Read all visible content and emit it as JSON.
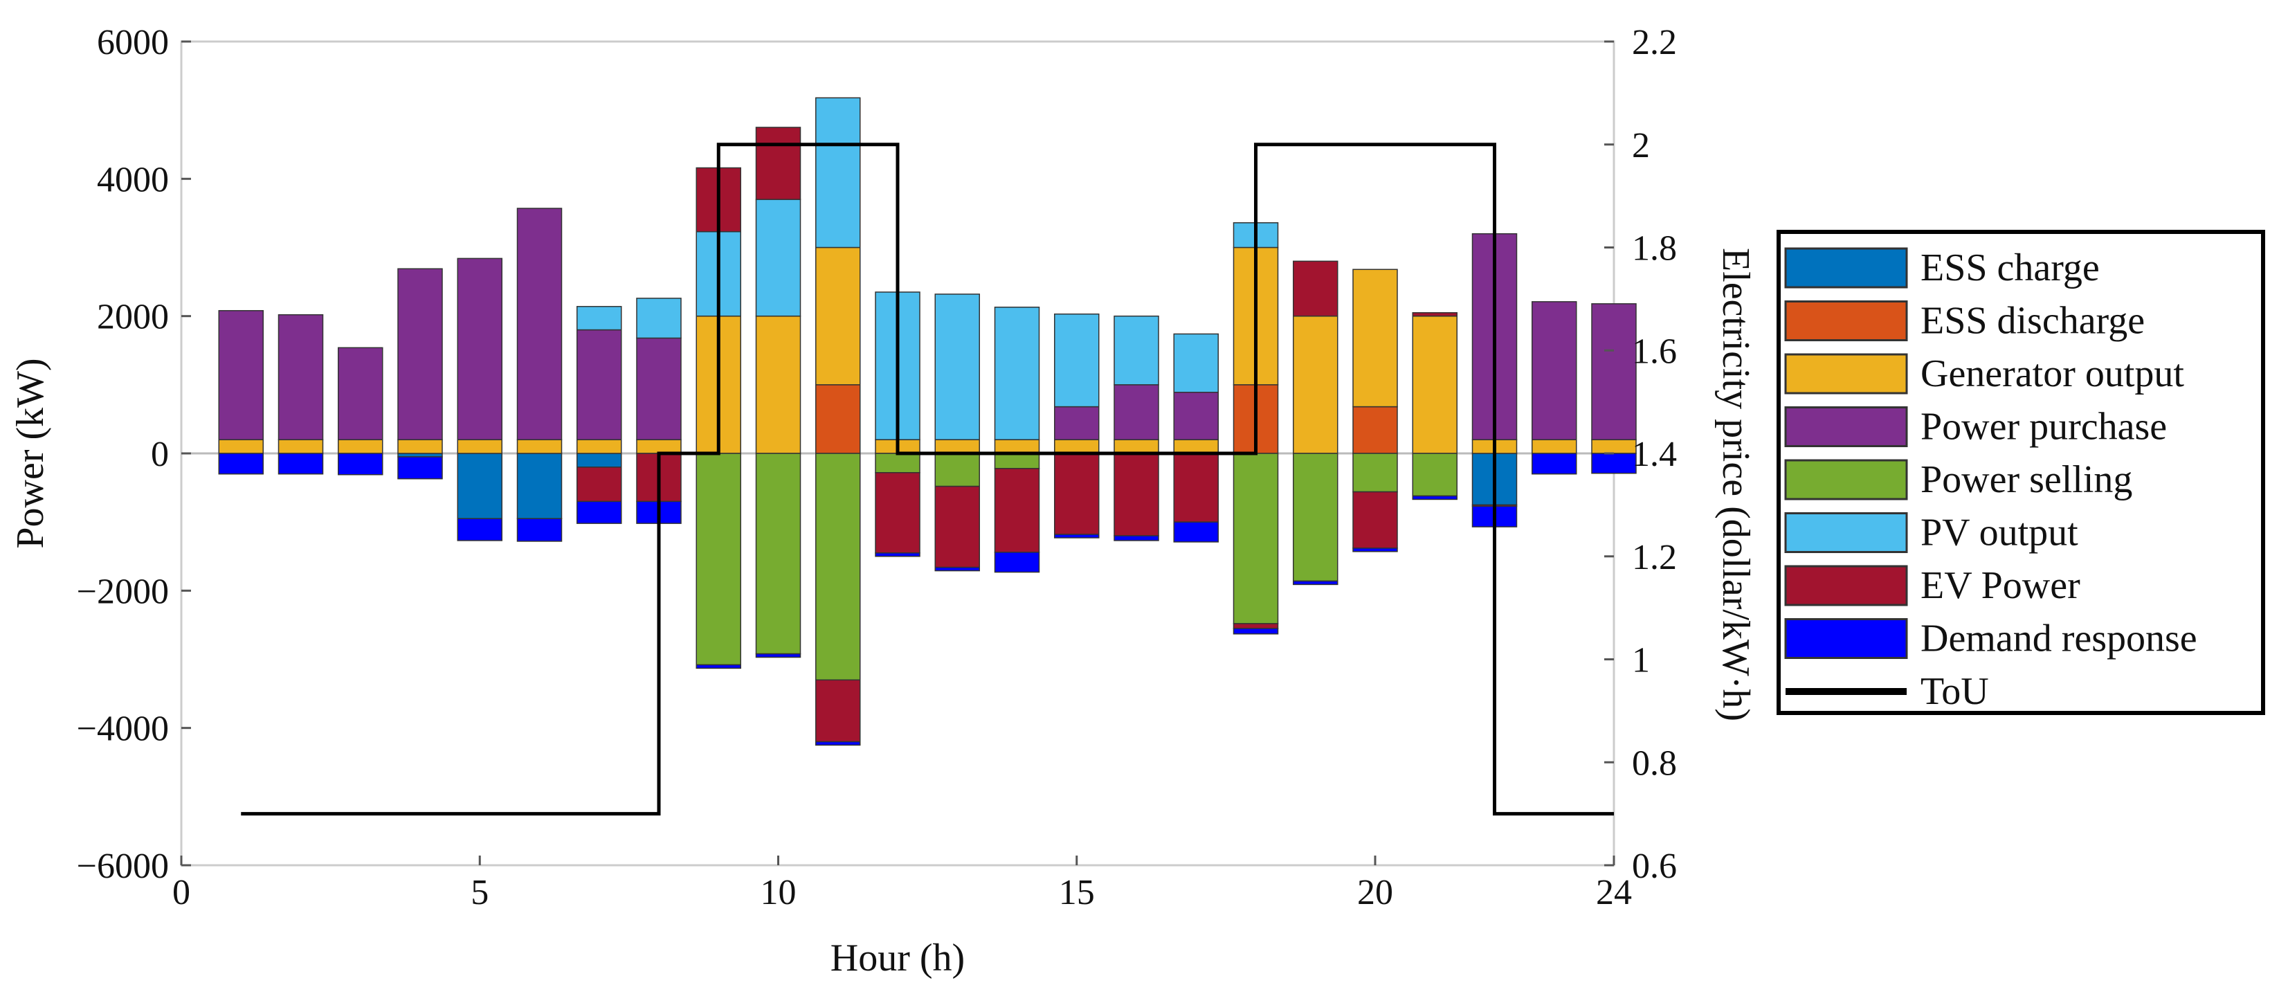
{
  "chart_data": {
    "type": "bar",
    "stacked": true,
    "xlabel": "Hour (h)",
    "ylabel": "Power (kW)",
    "y2label": "Electricity price (dollar/kW·h)",
    "xlim": [
      0,
      24
    ],
    "ylim": [
      -6000,
      6000
    ],
    "y2lim": [
      0.6,
      2.2
    ],
    "xticks": [
      "0",
      "5",
      "10",
      "15",
      "20",
      "24"
    ],
    "xtick_values": [
      0,
      5,
      10,
      15,
      20,
      24
    ],
    "yticks": [
      "6000",
      "4000",
      "2000",
      "0",
      "−2000",
      "−4000",
      "−6000"
    ],
    "ytick_values": [
      6000,
      4000,
      2000,
      0,
      -2000,
      -4000,
      -6000
    ],
    "y2ticks": [
      "2.2",
      "2",
      "1.8",
      "1.6",
      "1.4",
      "1.2",
      "1",
      "0.8",
      "0.6"
    ],
    "y2tick_values": [
      2.2,
      2.0,
      1.8,
      1.6,
      1.4,
      1.2,
      1.0,
      0.8,
      0.6
    ],
    "legend_position": "right",
    "hours": [
      1,
      2,
      3,
      4,
      5,
      6,
      7,
      8,
      9,
      10,
      11,
      12,
      13,
      14,
      15,
      16,
      17,
      18,
      19,
      20,
      21,
      22,
      23,
      24
    ],
    "series": [
      {
        "name": "ESS charge",
        "color": "#0072BD",
        "values": [
          0,
          0,
          0,
          -50,
          -950,
          -950,
          -200,
          0,
          0,
          0,
          0,
          0,
          0,
          0,
          0,
          0,
          0,
          0,
          0,
          0,
          0,
          -750,
          0,
          0
        ]
      },
      {
        "name": "ESS discharge",
        "color": "#D95319",
        "values": [
          0,
          0,
          0,
          0,
          0,
          0,
          0,
          0,
          0,
          0,
          1000,
          0,
          0,
          0,
          0,
          0,
          0,
          1000,
          0,
          680,
          0,
          0,
          0,
          0
        ]
      },
      {
        "name": "Generator output",
        "color": "#EDB120",
        "values": [
          200,
          200,
          200,
          200,
          200,
          200,
          200,
          200,
          2000,
          2000,
          2000,
          200,
          200,
          200,
          200,
          200,
          200,
          2000,
          2000,
          2000,
          2000,
          200,
          200,
          200
        ]
      },
      {
        "name": "Power purchase",
        "color": "#7E2F8E",
        "values": [
          1880,
          1820,
          1340,
          2490,
          2640,
          3370,
          1600,
          1480,
          0,
          0,
          0,
          0,
          0,
          0,
          480,
          800,
          690,
          0,
          0,
          0,
          0,
          3000,
          2010,
          1980
        ]
      },
      {
        "name": "Power selling",
        "color": "#77AC30",
        "values": [
          0,
          0,
          0,
          0,
          0,
          0,
          0,
          0,
          -3080,
          -2920,
          -3300,
          -280,
          -480,
          -220,
          0,
          0,
          0,
          -2480,
          -1860,
          -560,
          -620,
          0,
          0,
          0
        ]
      },
      {
        "name": "PV output",
        "color": "#4DBEEE",
        "values": [
          0,
          0,
          0,
          0,
          0,
          0,
          340,
          580,
          1230,
          1700,
          2180,
          2150,
          2120,
          1930,
          1350,
          1000,
          850,
          360,
          0,
          0,
          0,
          0,
          0,
          0
        ]
      },
      {
        "name": "EV Power",
        "color": "#A2142F",
        "values": [
          0,
          0,
          0,
          0,
          0,
          0,
          -500,
          -700,
          930,
          1050,
          -900,
          -1170,
          -1180,
          -1220,
          -1180,
          -1200,
          -1000,
          -70,
          800,
          -820,
          50,
          -20,
          0,
          0
        ]
      },
      {
        "name": "Demand response",
        "color": "#0000FF",
        "values": [
          -300,
          -300,
          -310,
          -320,
          -320,
          -330,
          -320,
          -320,
          -50,
          -50,
          -50,
          -50,
          -50,
          -290,
          -50,
          -70,
          -290,
          -80,
          -50,
          -50,
          -50,
          -300,
          -300,
          -290
        ]
      }
    ],
    "tou": {
      "name": "ToU",
      "color": "#000000",
      "points": [
        [
          1,
          0.7
        ],
        [
          8,
          0.7
        ],
        [
          8,
          1.4
        ],
        [
          9,
          1.4
        ],
        [
          9,
          2.0
        ],
        [
          12,
          2.0
        ],
        [
          12,
          1.4
        ],
        [
          18,
          1.4
        ],
        [
          18,
          2.0
        ],
        [
          22,
          2.0
        ],
        [
          22,
          0.7
        ],
        [
          24,
          0.7
        ]
      ]
    }
  }
}
